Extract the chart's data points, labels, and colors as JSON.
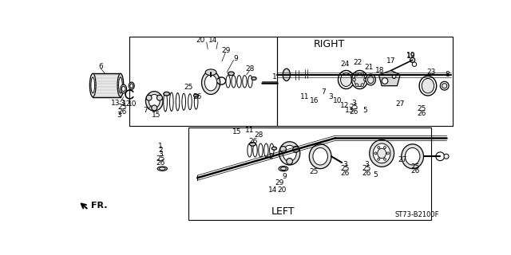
{
  "bg_color": "#ffffff",
  "line_color": "#000000",
  "right_label": "RIGHT",
  "left_label": "LEFT",
  "fr_label": "FR.",
  "part_code": "ST73-B2100F",
  "font_label": 9,
  "font_part": 6.5,
  "font_code": 6
}
